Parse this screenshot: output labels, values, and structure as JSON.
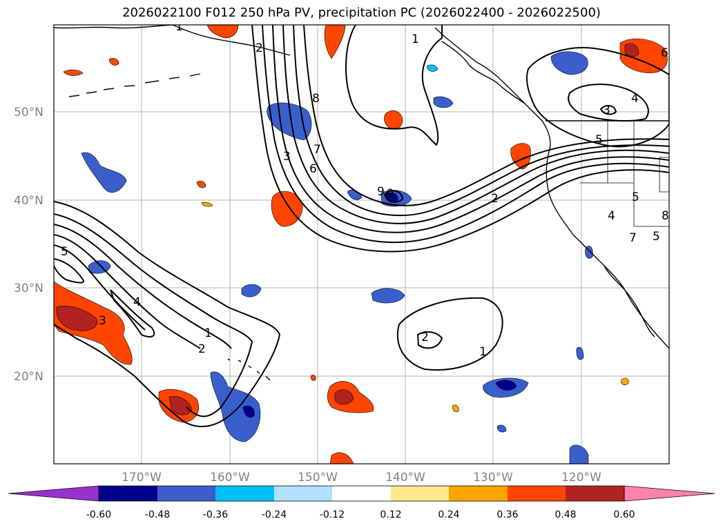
{
  "title": "2026022100 F012 250 hPa PV, precipitation PC (2026022400 - 2026022500)",
  "map": {
    "lat_labels": [
      "50°N",
      "40°N",
      "30°N",
      "20°N"
    ],
    "lon_labels": [
      "170°W",
      "160°W",
      "150°W",
      "140°W",
      "130°W",
      "120°W"
    ],
    "contour_labels": [
      "1",
      "2",
      "3",
      "4",
      "5",
      "6",
      "7",
      "8",
      "9",
      "3",
      "4",
      "5",
      "2",
      "1",
      "4",
      "3",
      "5",
      "2",
      "1",
      "2",
      "1",
      "5",
      "6",
      "7",
      "8",
      "9"
    ],
    "colors": {
      "land_outline": "#000000",
      "grid": "#b0b0b0",
      "contour": "#000000"
    }
  },
  "colorbar": {
    "colors": [
      "#9932cc",
      "#00008b",
      "#3a5fcd",
      "#00bfff",
      "#b0e2ff",
      "#ffffff",
      "#ffe88c",
      "#ffa500",
      "#ff4500",
      "#b22222",
      "#ff82ab"
    ],
    "tick_labels": [
      "-0.60",
      "-0.48",
      "-0.36",
      "-0.24",
      "-0.12",
      "0.12",
      "0.24",
      "0.36",
      "0.48",
      "0.60"
    ]
  }
}
